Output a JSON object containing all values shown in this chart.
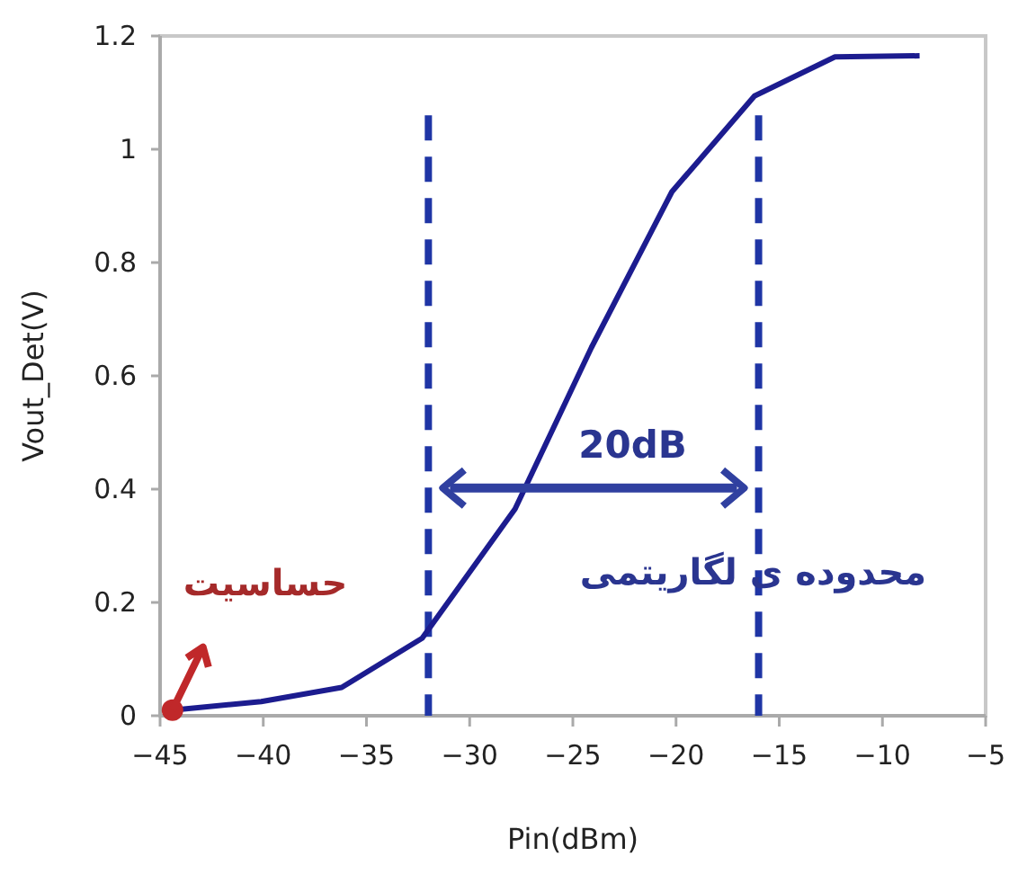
{
  "chart_data": {
    "type": "line",
    "xlabel": "Pin(dBm)",
    "ylabel": "Vout_Det(V)",
    "xlim": [
      -45,
      -5
    ],
    "xticks": [
      -45,
      -40,
      -35,
      -30,
      -25,
      -20,
      -15,
      -10,
      -5
    ],
    "ylim": [
      0,
      1.2
    ],
    "yticks": [
      0,
      0.2,
      0.4,
      0.6,
      0.8,
      1,
      1.2
    ],
    "grid": false,
    "marker": "none",
    "line_style": "solid",
    "series": [
      {
        "color": "#1c1c8f",
        "x": [
          -44.4,
          -40.1,
          -36.2,
          -32.3,
          -27.8,
          -24.1,
          -20.2,
          -16.2,
          -12.3,
          -8.2
        ],
        "values": [
          0.01,
          0.025,
          0.05,
          0.137,
          0.365,
          0.65,
          0.925,
          1.094,
          1.163,
          1.165
        ]
      }
    ],
    "ref_lines": [
      {
        "axis": "x",
        "value": -32,
        "color": "#1f35a5",
        "line_style": "dashed"
      },
      {
        "axis": "x",
        "value": -16,
        "color": "#1f35a5",
        "line_style": "dashed"
      }
    ],
    "annotations": [
      "20dB",
      {
        "text": "حساسیت",
        "x": -44.4,
        "y": 0.01
      },
      "محدوده ی لگاریتمی"
    ]
  }
}
